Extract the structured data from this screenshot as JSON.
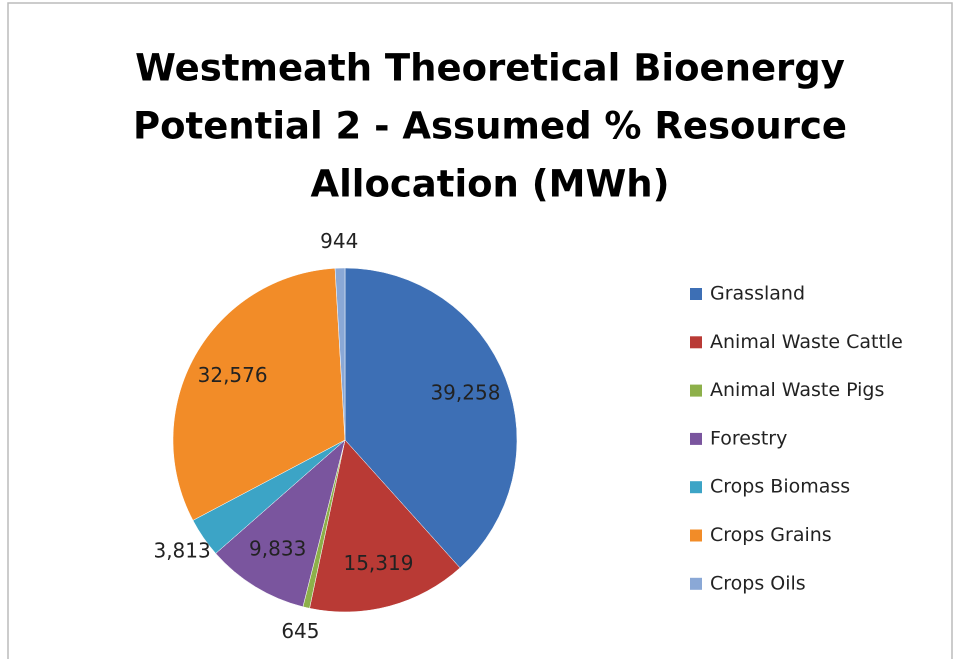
{
  "chart_data": {
    "type": "pie",
    "title": [
      "Westmeath Theoretical Bioenergy",
      "Potential 2 - Assumed % Resource",
      "Allocation (MWh)"
    ],
    "categories": [
      "Grassland",
      "Animal Waste Cattle",
      "Animal Waste Pigs",
      "Forestry",
      "Crops Biomass",
      "Crops Grains",
      "Crops Oils"
    ],
    "values": [
      39258,
      15319,
      645,
      9833,
      3813,
      32576,
      944
    ],
    "value_labels": [
      "39,258",
      "15,319",
      "645",
      "9,833",
      "3,813",
      "32,576",
      "944"
    ],
    "colors": [
      "#3d6fb5",
      "#b93a35",
      "#8db04a",
      "#7a559e",
      "#3ca4c6",
      "#f28c28",
      "#8aa8d6"
    ],
    "legend": "right"
  }
}
